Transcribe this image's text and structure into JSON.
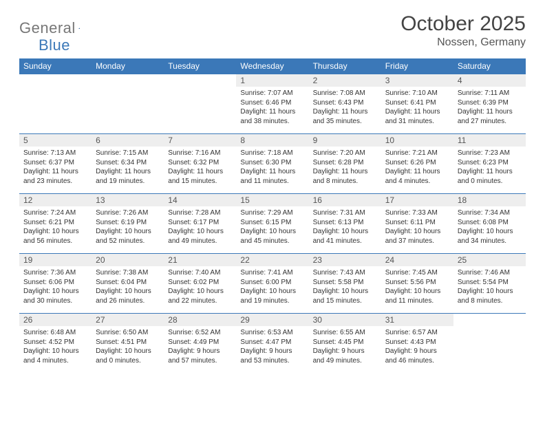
{
  "logo": {
    "text1": "General",
    "text2": "Blue"
  },
  "title": "October 2025",
  "location": "Nossen, Germany",
  "colors": {
    "header_bg": "#3b78b8",
    "header_fg": "#ffffff",
    "daynum_bg": "#eeeeee",
    "border": "#3b78b8"
  },
  "day_headers": [
    "Sunday",
    "Monday",
    "Tuesday",
    "Wednesday",
    "Thursday",
    "Friday",
    "Saturday"
  ],
  "weeks": [
    [
      null,
      null,
      null,
      {
        "n": "1",
        "sr": "7:07 AM",
        "ss": "6:46 PM",
        "dl": "11 hours and 38 minutes."
      },
      {
        "n": "2",
        "sr": "7:08 AM",
        "ss": "6:43 PM",
        "dl": "11 hours and 35 minutes."
      },
      {
        "n": "3",
        "sr": "7:10 AM",
        "ss": "6:41 PM",
        "dl": "11 hours and 31 minutes."
      },
      {
        "n": "4",
        "sr": "7:11 AM",
        "ss": "6:39 PM",
        "dl": "11 hours and 27 minutes."
      }
    ],
    [
      {
        "n": "5",
        "sr": "7:13 AM",
        "ss": "6:37 PM",
        "dl": "11 hours and 23 minutes."
      },
      {
        "n": "6",
        "sr": "7:15 AM",
        "ss": "6:34 PM",
        "dl": "11 hours and 19 minutes."
      },
      {
        "n": "7",
        "sr": "7:16 AM",
        "ss": "6:32 PM",
        "dl": "11 hours and 15 minutes."
      },
      {
        "n": "8",
        "sr": "7:18 AM",
        "ss": "6:30 PM",
        "dl": "11 hours and 11 minutes."
      },
      {
        "n": "9",
        "sr": "7:20 AM",
        "ss": "6:28 PM",
        "dl": "11 hours and 8 minutes."
      },
      {
        "n": "10",
        "sr": "7:21 AM",
        "ss": "6:26 PM",
        "dl": "11 hours and 4 minutes."
      },
      {
        "n": "11",
        "sr": "7:23 AM",
        "ss": "6:23 PM",
        "dl": "11 hours and 0 minutes."
      }
    ],
    [
      {
        "n": "12",
        "sr": "7:24 AM",
        "ss": "6:21 PM",
        "dl": "10 hours and 56 minutes."
      },
      {
        "n": "13",
        "sr": "7:26 AM",
        "ss": "6:19 PM",
        "dl": "10 hours and 52 minutes."
      },
      {
        "n": "14",
        "sr": "7:28 AM",
        "ss": "6:17 PM",
        "dl": "10 hours and 49 minutes."
      },
      {
        "n": "15",
        "sr": "7:29 AM",
        "ss": "6:15 PM",
        "dl": "10 hours and 45 minutes."
      },
      {
        "n": "16",
        "sr": "7:31 AM",
        "ss": "6:13 PM",
        "dl": "10 hours and 41 minutes."
      },
      {
        "n": "17",
        "sr": "7:33 AM",
        "ss": "6:11 PM",
        "dl": "10 hours and 37 minutes."
      },
      {
        "n": "18",
        "sr": "7:34 AM",
        "ss": "6:08 PM",
        "dl": "10 hours and 34 minutes."
      }
    ],
    [
      {
        "n": "19",
        "sr": "7:36 AM",
        "ss": "6:06 PM",
        "dl": "10 hours and 30 minutes."
      },
      {
        "n": "20",
        "sr": "7:38 AM",
        "ss": "6:04 PM",
        "dl": "10 hours and 26 minutes."
      },
      {
        "n": "21",
        "sr": "7:40 AM",
        "ss": "6:02 PM",
        "dl": "10 hours and 22 minutes."
      },
      {
        "n": "22",
        "sr": "7:41 AM",
        "ss": "6:00 PM",
        "dl": "10 hours and 19 minutes."
      },
      {
        "n": "23",
        "sr": "7:43 AM",
        "ss": "5:58 PM",
        "dl": "10 hours and 15 minutes."
      },
      {
        "n": "24",
        "sr": "7:45 AM",
        "ss": "5:56 PM",
        "dl": "10 hours and 11 minutes."
      },
      {
        "n": "25",
        "sr": "7:46 AM",
        "ss": "5:54 PM",
        "dl": "10 hours and 8 minutes."
      }
    ],
    [
      {
        "n": "26",
        "sr": "6:48 AM",
        "ss": "4:52 PM",
        "dl": "10 hours and 4 minutes."
      },
      {
        "n": "27",
        "sr": "6:50 AM",
        "ss": "4:51 PM",
        "dl": "10 hours and 0 minutes."
      },
      {
        "n": "28",
        "sr": "6:52 AM",
        "ss": "4:49 PM",
        "dl": "9 hours and 57 minutes."
      },
      {
        "n": "29",
        "sr": "6:53 AM",
        "ss": "4:47 PM",
        "dl": "9 hours and 53 minutes."
      },
      {
        "n": "30",
        "sr": "6:55 AM",
        "ss": "4:45 PM",
        "dl": "9 hours and 49 minutes."
      },
      {
        "n": "31",
        "sr": "6:57 AM",
        "ss": "4:43 PM",
        "dl": "9 hours and 46 minutes."
      },
      null
    ]
  ],
  "labels": {
    "sunrise": "Sunrise:",
    "sunset": "Sunset:",
    "daylight": "Daylight:"
  }
}
